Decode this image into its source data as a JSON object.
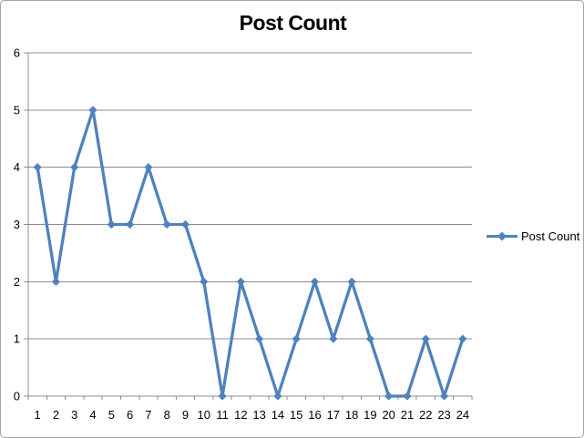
{
  "title": "Post Count",
  "legend": {
    "label": "Post Count"
  },
  "colors": {
    "series": "#4F81BD",
    "gridline": "#8C8C8C",
    "axis": "#8C8C8C",
    "tick": "#8C8C8C",
    "text": "#000000",
    "frame_border": "#A3A3A3",
    "background": "#FFFFFF"
  },
  "chart_data": {
    "type": "line",
    "title": "Post Count",
    "categories": [
      "1",
      "2",
      "3",
      "4",
      "5",
      "6",
      "7",
      "8",
      "9",
      "10",
      "11",
      "12",
      "13",
      "14",
      "15",
      "16",
      "17",
      "18",
      "19",
      "20",
      "21",
      "22",
      "23",
      "24"
    ],
    "series": [
      {
        "name": "Post Count",
        "values": [
          4,
          2,
          4,
          5,
          3,
          3,
          4,
          3,
          3,
          2,
          0,
          2,
          1,
          0,
          1,
          2,
          1,
          2,
          1,
          0,
          0,
          1,
          0,
          1
        ]
      }
    ],
    "xlabel": "",
    "ylabel": "",
    "ylim": [
      0,
      6
    ],
    "yticks": [
      0,
      1,
      2,
      3,
      4,
      5,
      6
    ],
    "grid": true,
    "legend_position": "right",
    "marker": "diamond"
  }
}
